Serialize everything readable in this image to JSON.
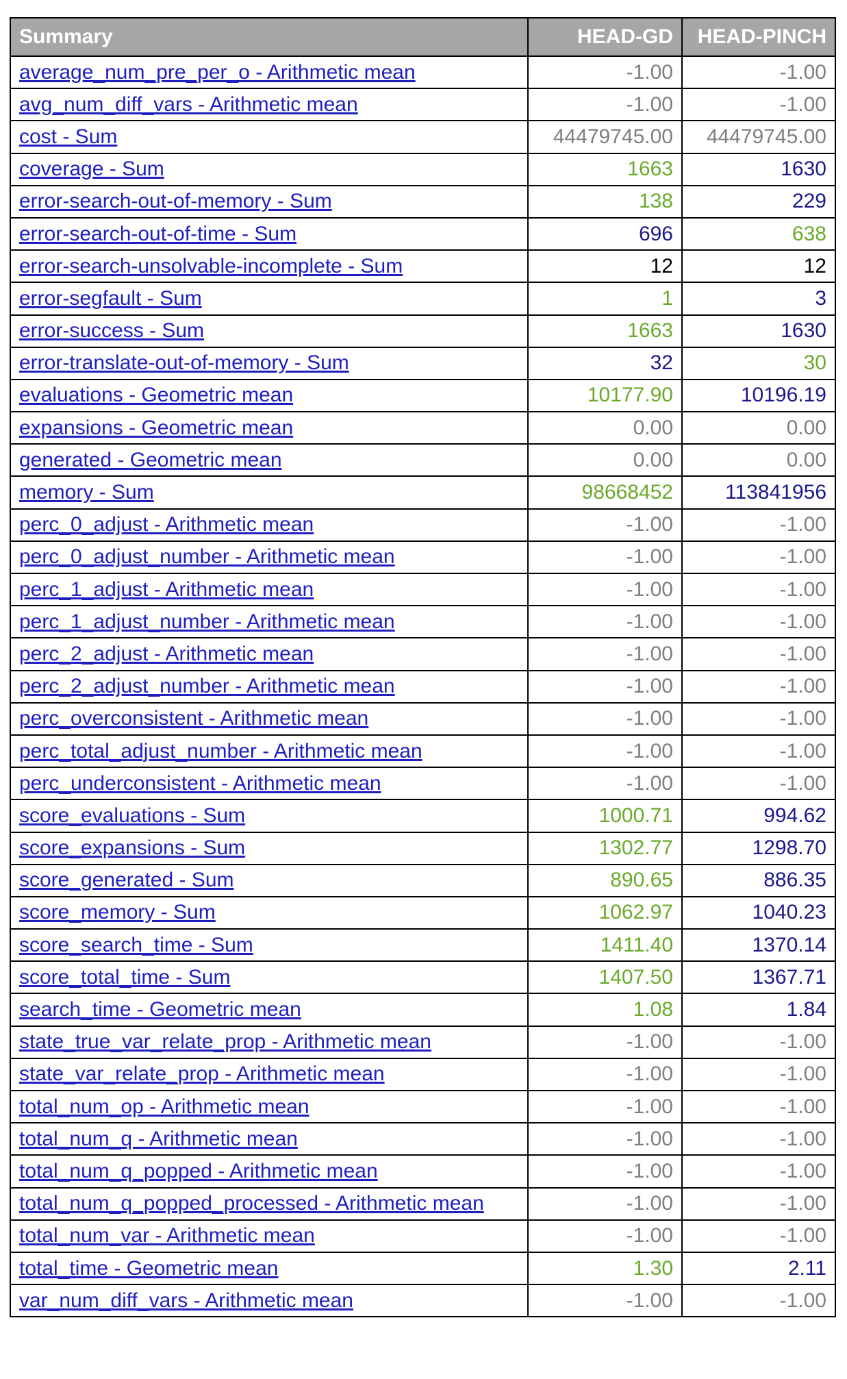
{
  "table": {
    "headers": [
      "Summary",
      "HEAD-GD",
      "HEAD-PINCH"
    ],
    "colors": {
      "gray": "#7f7f7f",
      "green": "#6aaa2a",
      "blue": "#1a1a8c",
      "black": "#000000",
      "link": "#1f1fbf",
      "header_bg": "#a6a6a6"
    },
    "rows": [
      {
        "label": "average_num_pre_per_o - Arithmetic mean",
        "v1": "-1.00",
        "c1": "gray",
        "v2": "-1.00",
        "c2": "gray"
      },
      {
        "label": "avg_num_diff_vars - Arithmetic mean",
        "v1": "-1.00",
        "c1": "gray",
        "v2": "-1.00",
        "c2": "gray"
      },
      {
        "label": "cost - Sum",
        "v1": "44479745.00",
        "c1": "gray",
        "v2": "44479745.00",
        "c2": "gray"
      },
      {
        "label": "coverage - Sum",
        "v1": "1663",
        "c1": "green",
        "v2": "1630",
        "c2": "blue"
      },
      {
        "label": "error-search-out-of-memory - Sum",
        "v1": "138",
        "c1": "green",
        "v2": "229",
        "c2": "blue"
      },
      {
        "label": "error-search-out-of-time - Sum",
        "v1": "696",
        "c1": "blue",
        "v2": "638",
        "c2": "green"
      },
      {
        "label": "error-search-unsolvable-incomplete - Sum",
        "v1": "12",
        "c1": "black",
        "v2": "12",
        "c2": "black"
      },
      {
        "label": "error-segfault - Sum",
        "v1": "1",
        "c1": "green",
        "v2": "3",
        "c2": "blue"
      },
      {
        "label": "error-success - Sum",
        "v1": "1663",
        "c1": "green",
        "v2": "1630",
        "c2": "blue"
      },
      {
        "label": "error-translate-out-of-memory - Sum",
        "v1": "32",
        "c1": "blue",
        "v2": "30",
        "c2": "green"
      },
      {
        "label": "evaluations - Geometric mean",
        "v1": "10177.90",
        "c1": "green",
        "v2": "10196.19",
        "c2": "blue"
      },
      {
        "label": "expansions - Geometric mean",
        "v1": "0.00",
        "c1": "gray",
        "v2": "0.00",
        "c2": "gray"
      },
      {
        "label": "generated - Geometric mean",
        "v1": "0.00",
        "c1": "gray",
        "v2": "0.00",
        "c2": "gray"
      },
      {
        "label": "memory - Sum",
        "v1": "98668452",
        "c1": "green",
        "v2": "113841956",
        "c2": "blue"
      },
      {
        "label": "perc_0_adjust - Arithmetic mean",
        "v1": "-1.00",
        "c1": "gray",
        "v2": "-1.00",
        "c2": "gray"
      },
      {
        "label": "perc_0_adjust_number - Arithmetic mean",
        "v1": "-1.00",
        "c1": "gray",
        "v2": "-1.00",
        "c2": "gray"
      },
      {
        "label": "perc_1_adjust - Arithmetic mean",
        "v1": "-1.00",
        "c1": "gray",
        "v2": "-1.00",
        "c2": "gray"
      },
      {
        "label": "perc_1_adjust_number - Arithmetic mean",
        "v1": "-1.00",
        "c1": "gray",
        "v2": "-1.00",
        "c2": "gray"
      },
      {
        "label": "perc_2_adjust - Arithmetic mean",
        "v1": "-1.00",
        "c1": "gray",
        "v2": "-1.00",
        "c2": "gray"
      },
      {
        "label": "perc_2_adjust_number - Arithmetic mean",
        "v1": "-1.00",
        "c1": "gray",
        "v2": "-1.00",
        "c2": "gray"
      },
      {
        "label": "perc_overconsistent - Arithmetic mean",
        "v1": "-1.00",
        "c1": "gray",
        "v2": "-1.00",
        "c2": "gray"
      },
      {
        "label": "perc_total_adjust_number - Arithmetic mean",
        "v1": "-1.00",
        "c1": "gray",
        "v2": "-1.00",
        "c2": "gray"
      },
      {
        "label": "perc_underconsistent - Arithmetic mean",
        "v1": "-1.00",
        "c1": "gray",
        "v2": "-1.00",
        "c2": "gray"
      },
      {
        "label": "score_evaluations - Sum",
        "v1": "1000.71",
        "c1": "green",
        "v2": "994.62",
        "c2": "blue"
      },
      {
        "label": "score_expansions - Sum",
        "v1": "1302.77",
        "c1": "green",
        "v2": "1298.70",
        "c2": "blue"
      },
      {
        "label": "score_generated - Sum",
        "v1": "890.65",
        "c1": "green",
        "v2": "886.35",
        "c2": "blue"
      },
      {
        "label": "score_memory - Sum",
        "v1": "1062.97",
        "c1": "green",
        "v2": "1040.23",
        "c2": "blue"
      },
      {
        "label": "score_search_time - Sum",
        "v1": "1411.40",
        "c1": "green",
        "v2": "1370.14",
        "c2": "blue"
      },
      {
        "label": "score_total_time - Sum",
        "v1": "1407.50",
        "c1": "green",
        "v2": "1367.71",
        "c2": "blue"
      },
      {
        "label": "search_time - Geometric mean",
        "v1": "1.08",
        "c1": "green",
        "v2": "1.84",
        "c2": "blue"
      },
      {
        "label": "state_true_var_relate_prop - Arithmetic mean",
        "v1": "-1.00",
        "c1": "gray",
        "v2": "-1.00",
        "c2": "gray"
      },
      {
        "label": "state_var_relate_prop - Arithmetic mean",
        "v1": "-1.00",
        "c1": "gray",
        "v2": "-1.00",
        "c2": "gray"
      },
      {
        "label": "total_num_op - Arithmetic mean",
        "v1": "-1.00",
        "c1": "gray",
        "v2": "-1.00",
        "c2": "gray"
      },
      {
        "label": "total_num_q - Arithmetic mean",
        "v1": "-1.00",
        "c1": "gray",
        "v2": "-1.00",
        "c2": "gray"
      },
      {
        "label": "total_num_q_popped - Arithmetic mean",
        "v1": "-1.00",
        "c1": "gray",
        "v2": "-1.00",
        "c2": "gray"
      },
      {
        "label": "total_num_q_popped_processed - Arithmetic mean",
        "v1": "-1.00",
        "c1": "gray",
        "v2": "-1.00",
        "c2": "gray"
      },
      {
        "label": "total_num_var - Arithmetic mean",
        "v1": "-1.00",
        "c1": "gray",
        "v2": "-1.00",
        "c2": "gray"
      },
      {
        "label": "total_time - Geometric mean",
        "v1": "1.30",
        "c1": "green",
        "v2": "2.11",
        "c2": "blue"
      },
      {
        "label": "var_num_diff_vars - Arithmetic mean",
        "v1": "-1.00",
        "c1": "gray",
        "v2": "-1.00",
        "c2": "gray"
      }
    ]
  }
}
